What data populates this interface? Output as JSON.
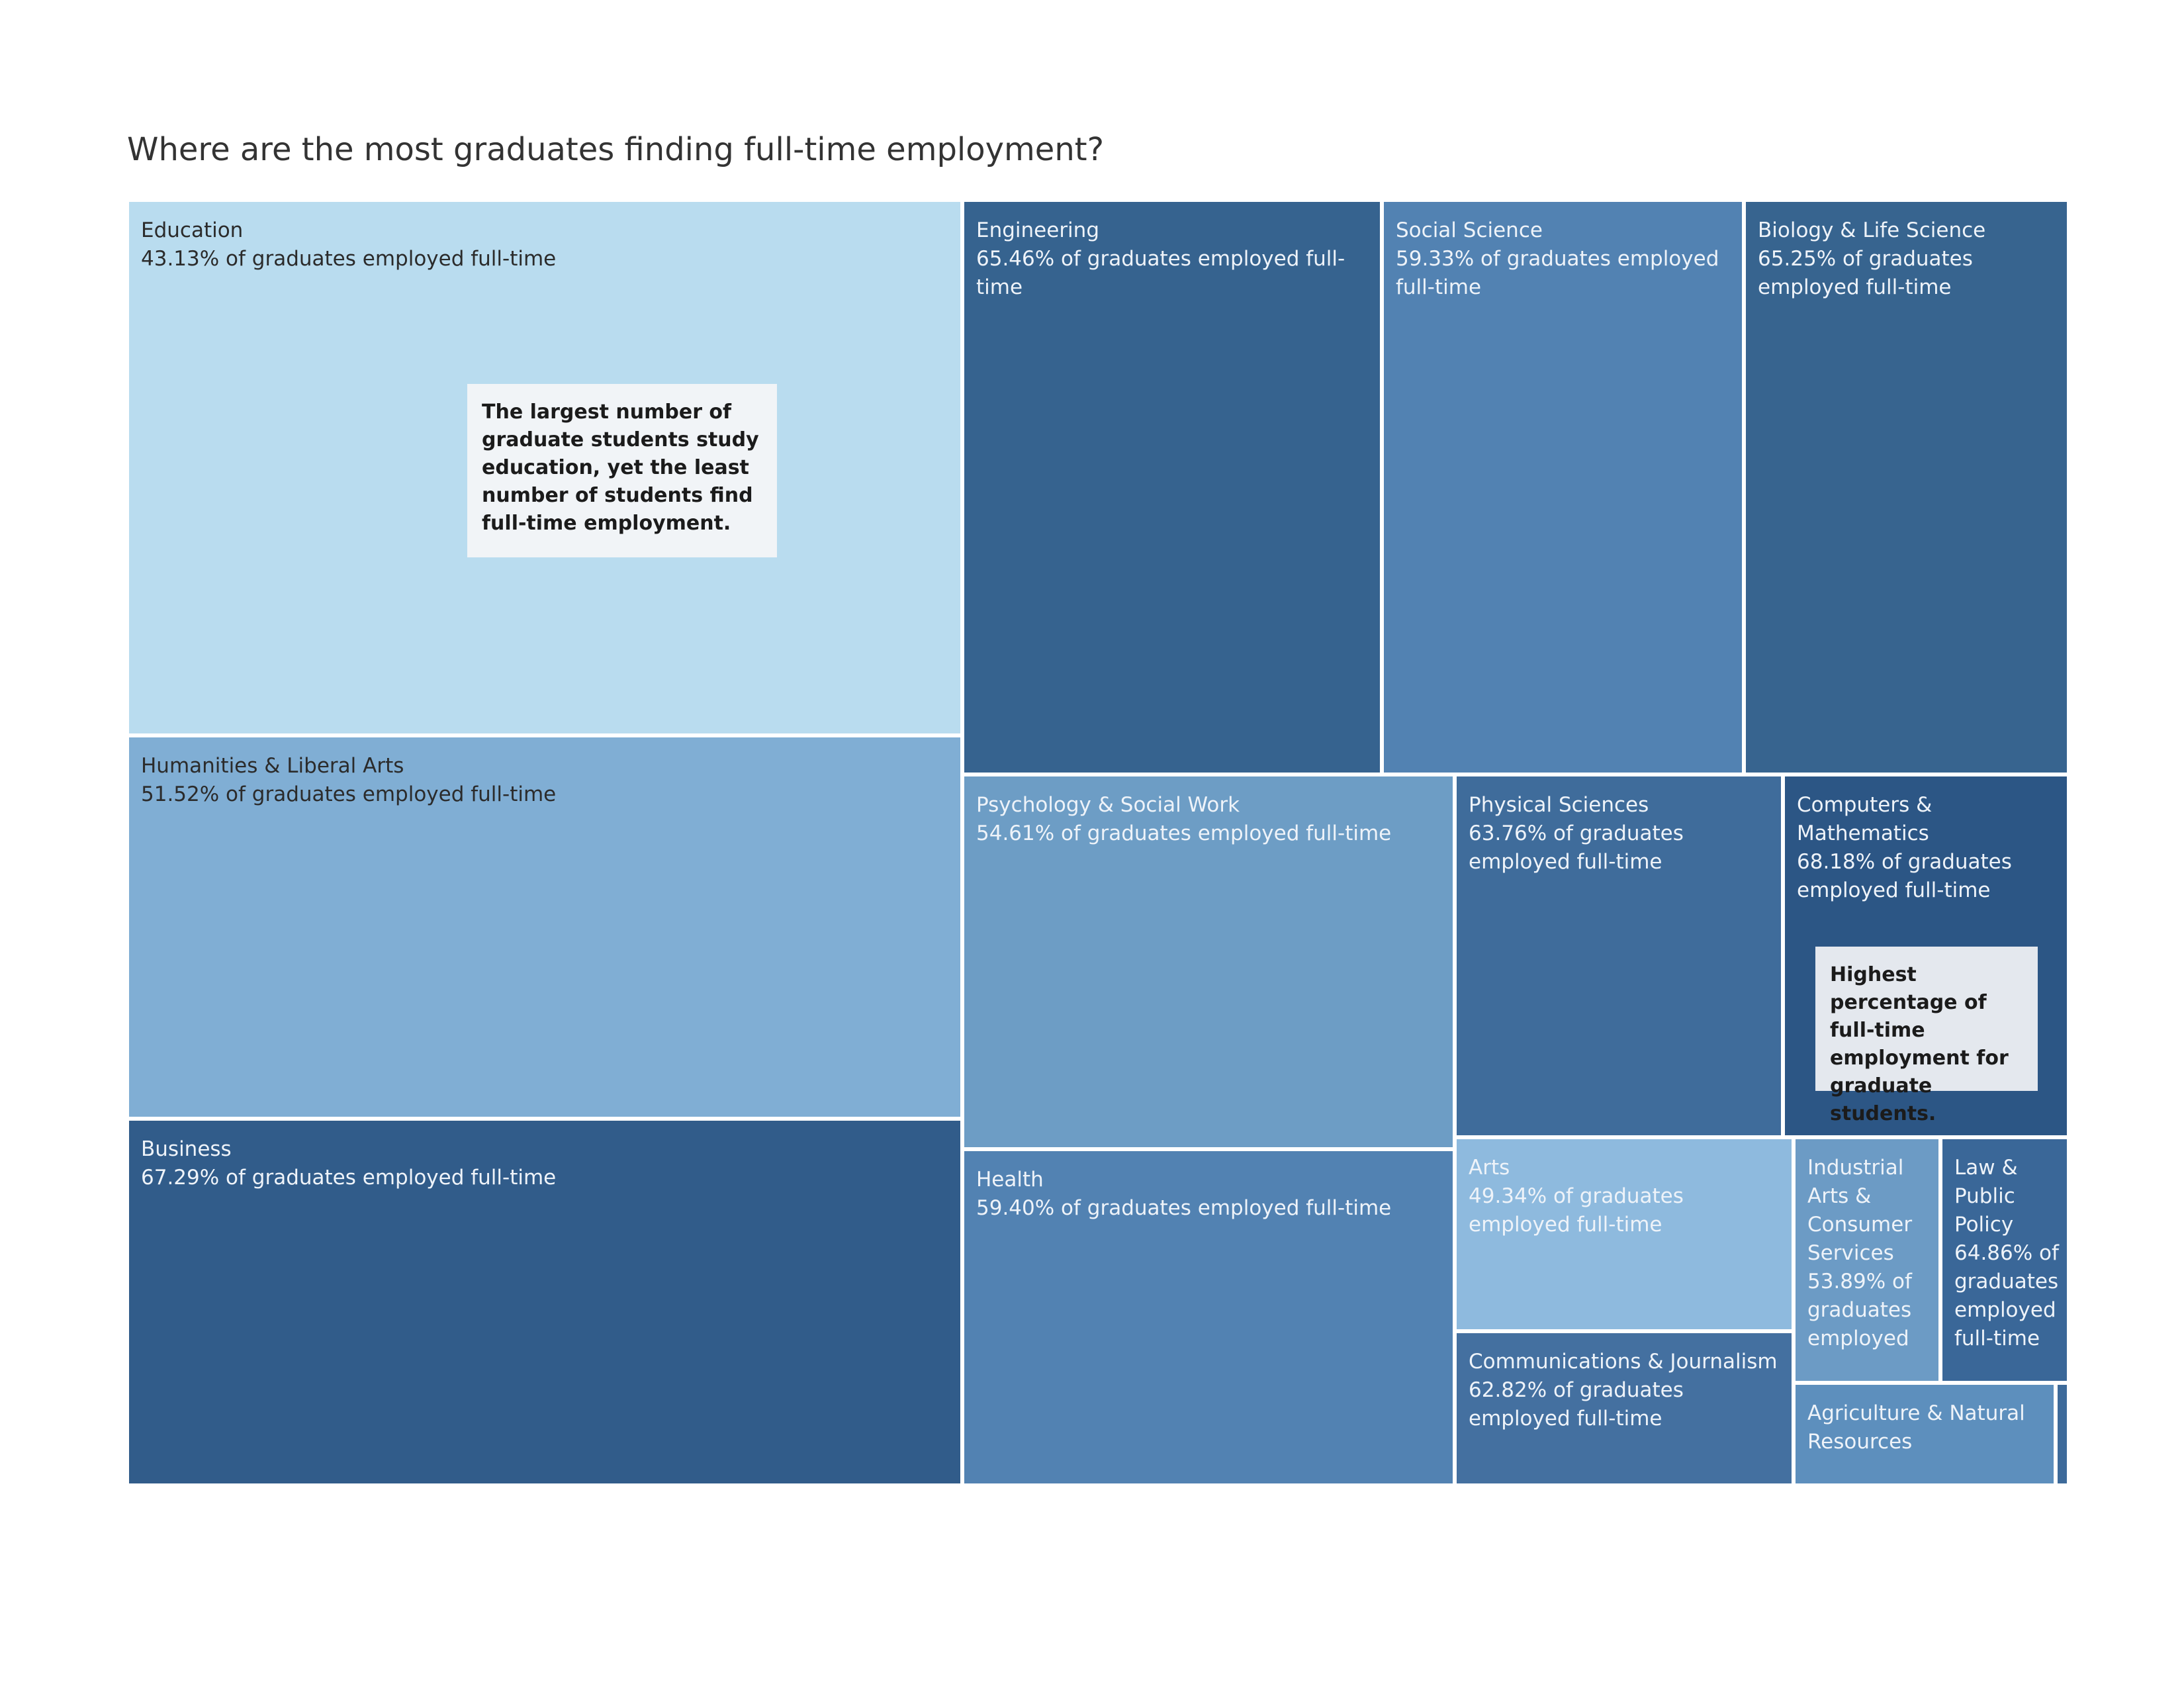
{
  "title": "Where are the most graduates finding full-time employment?",
  "chart_data": {
    "type": "treemap",
    "title": "Where are the most graduates finding full-time employment?",
    "metric_suffix": "of graduates employed full-time",
    "color_scale": {
      "low": "#b9dcef",
      "high": "#2c5380"
    },
    "categories": [
      {
        "name": "Education",
        "pct": "43.13%",
        "label": "43.13% of graduates employed full-time",
        "color": "#b9dcef"
      },
      {
        "name": "Humanities & Liberal Arts",
        "pct": "51.52%",
        "label": "51.52% of graduates employed full-time",
        "color": "#80aed4"
      },
      {
        "name": "Business",
        "pct": "67.29%",
        "label": "67.29% of graduates employed full-time",
        "color": "#315c8a"
      },
      {
        "name": "Engineering",
        "pct": "65.46%",
        "label": "65.46% of graduates employed full-time",
        "color": "#36638f"
      },
      {
        "name": "Social Science",
        "pct": "59.33%",
        "label": "59.33% of graduates employed full-time",
        "color": "#5282b2"
      },
      {
        "name": "Biology & Life Science",
        "pct": "65.25%",
        "label": "65.25% of graduates employed full-time",
        "color": "#37648f"
      },
      {
        "name": "Psychology & Social Work",
        "pct": "54.61%",
        "label": "54.61% of graduates employed full-time",
        "color": "#6d9dc5"
      },
      {
        "name": "Physical Sciences",
        "pct": "63.76%",
        "label": "63.76% of graduates employed full-time",
        "color": "#3f6c9b"
      },
      {
        "name": "Computers & Mathematics",
        "pct": "68.18%",
        "label": "68.18% of graduates employed full-time",
        "color": "#2c5685"
      },
      {
        "name": "Health",
        "pct": "59.40%",
        "label": "59.40% of graduates employed full-time",
        "color": "#5282b2"
      },
      {
        "name": "Arts",
        "pct": "49.34%",
        "label": "49.34% of graduates employed full-time",
        "color": "#8ebade"
      },
      {
        "name": "Communications & Journalism",
        "pct": "62.82%",
        "label": "62.82% of graduates employed full-time",
        "color": "#4470a0"
      },
      {
        "name": "Industrial Arts & Consumer Services",
        "pct": "53.89%",
        "label": "53.89% of graduates employed",
        "color": "#6c9bc5"
      },
      {
        "name": "Law & Public Policy",
        "pct": "64.86%",
        "label": "64.86% of graduates employed full-time",
        "color": "#3a6798"
      },
      {
        "name": "Agriculture & Natural Resources",
        "pct": "",
        "label": "",
        "color": "#5d8fbd"
      },
      {
        "name": "",
        "pct": "",
        "label": "",
        "color": "#3d6a9a"
      }
    ],
    "annotations": [
      {
        "text": "The largest number of graduate students study education, yet the least number of students find full-time employment.",
        "bg": "#f1f4f7"
      },
      {
        "text": "Highest percentage of full-time employment for graduate students.",
        "bg": "#e4e8ee"
      }
    ]
  }
}
